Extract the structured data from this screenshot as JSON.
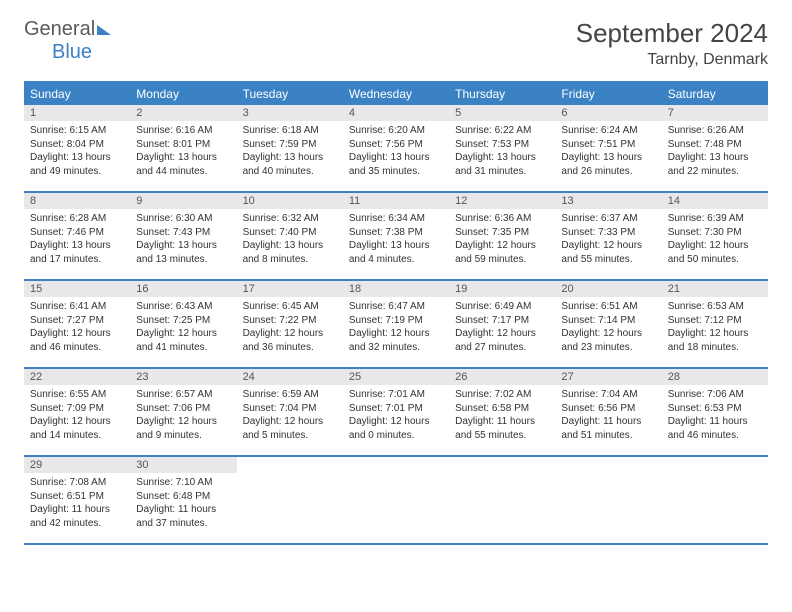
{
  "logo": {
    "part1": "General",
    "part2": "Blue"
  },
  "title": "September 2024",
  "location": "Tarnby, Denmark",
  "colors": {
    "accent": "#3b82c4",
    "daynum_bg": "#e8e8e8",
    "text": "#333333"
  },
  "dow": [
    "Sunday",
    "Monday",
    "Tuesday",
    "Wednesday",
    "Thursday",
    "Friday",
    "Saturday"
  ],
  "days": [
    {
      "n": "1",
      "sr": "6:15 AM",
      "ss": "8:04 PM",
      "dl": "13 hours and 49 minutes."
    },
    {
      "n": "2",
      "sr": "6:16 AM",
      "ss": "8:01 PM",
      "dl": "13 hours and 44 minutes."
    },
    {
      "n": "3",
      "sr": "6:18 AM",
      "ss": "7:59 PM",
      "dl": "13 hours and 40 minutes."
    },
    {
      "n": "4",
      "sr": "6:20 AM",
      "ss": "7:56 PM",
      "dl": "13 hours and 35 minutes."
    },
    {
      "n": "5",
      "sr": "6:22 AM",
      "ss": "7:53 PM",
      "dl": "13 hours and 31 minutes."
    },
    {
      "n": "6",
      "sr": "6:24 AM",
      "ss": "7:51 PM",
      "dl": "13 hours and 26 minutes."
    },
    {
      "n": "7",
      "sr": "6:26 AM",
      "ss": "7:48 PM",
      "dl": "13 hours and 22 minutes."
    },
    {
      "n": "8",
      "sr": "6:28 AM",
      "ss": "7:46 PM",
      "dl": "13 hours and 17 minutes."
    },
    {
      "n": "9",
      "sr": "6:30 AM",
      "ss": "7:43 PM",
      "dl": "13 hours and 13 minutes."
    },
    {
      "n": "10",
      "sr": "6:32 AM",
      "ss": "7:40 PM",
      "dl": "13 hours and 8 minutes."
    },
    {
      "n": "11",
      "sr": "6:34 AM",
      "ss": "7:38 PM",
      "dl": "13 hours and 4 minutes."
    },
    {
      "n": "12",
      "sr": "6:36 AM",
      "ss": "7:35 PM",
      "dl": "12 hours and 59 minutes."
    },
    {
      "n": "13",
      "sr": "6:37 AM",
      "ss": "7:33 PM",
      "dl": "12 hours and 55 minutes."
    },
    {
      "n": "14",
      "sr": "6:39 AM",
      "ss": "7:30 PM",
      "dl": "12 hours and 50 minutes."
    },
    {
      "n": "15",
      "sr": "6:41 AM",
      "ss": "7:27 PM",
      "dl": "12 hours and 46 minutes."
    },
    {
      "n": "16",
      "sr": "6:43 AM",
      "ss": "7:25 PM",
      "dl": "12 hours and 41 minutes."
    },
    {
      "n": "17",
      "sr": "6:45 AM",
      "ss": "7:22 PM",
      "dl": "12 hours and 36 minutes."
    },
    {
      "n": "18",
      "sr": "6:47 AM",
      "ss": "7:19 PM",
      "dl": "12 hours and 32 minutes."
    },
    {
      "n": "19",
      "sr": "6:49 AM",
      "ss": "7:17 PM",
      "dl": "12 hours and 27 minutes."
    },
    {
      "n": "20",
      "sr": "6:51 AM",
      "ss": "7:14 PM",
      "dl": "12 hours and 23 minutes."
    },
    {
      "n": "21",
      "sr": "6:53 AM",
      "ss": "7:12 PM",
      "dl": "12 hours and 18 minutes."
    },
    {
      "n": "22",
      "sr": "6:55 AM",
      "ss": "7:09 PM",
      "dl": "12 hours and 14 minutes."
    },
    {
      "n": "23",
      "sr": "6:57 AM",
      "ss": "7:06 PM",
      "dl": "12 hours and 9 minutes."
    },
    {
      "n": "24",
      "sr": "6:59 AM",
      "ss": "7:04 PM",
      "dl": "12 hours and 5 minutes."
    },
    {
      "n": "25",
      "sr": "7:01 AM",
      "ss": "7:01 PM",
      "dl": "12 hours and 0 minutes."
    },
    {
      "n": "26",
      "sr": "7:02 AM",
      "ss": "6:58 PM",
      "dl": "11 hours and 55 minutes."
    },
    {
      "n": "27",
      "sr": "7:04 AM",
      "ss": "6:56 PM",
      "dl": "11 hours and 51 minutes."
    },
    {
      "n": "28",
      "sr": "7:06 AM",
      "ss": "6:53 PM",
      "dl": "11 hours and 46 minutes."
    },
    {
      "n": "29",
      "sr": "7:08 AM",
      "ss": "6:51 PM",
      "dl": "11 hours and 42 minutes."
    },
    {
      "n": "30",
      "sr": "7:10 AM",
      "ss": "6:48 PM",
      "dl": "11 hours and 37 minutes."
    }
  ],
  "labels": {
    "sunrise": "Sunrise:",
    "sunset": "Sunset:",
    "daylight": "Daylight:"
  }
}
